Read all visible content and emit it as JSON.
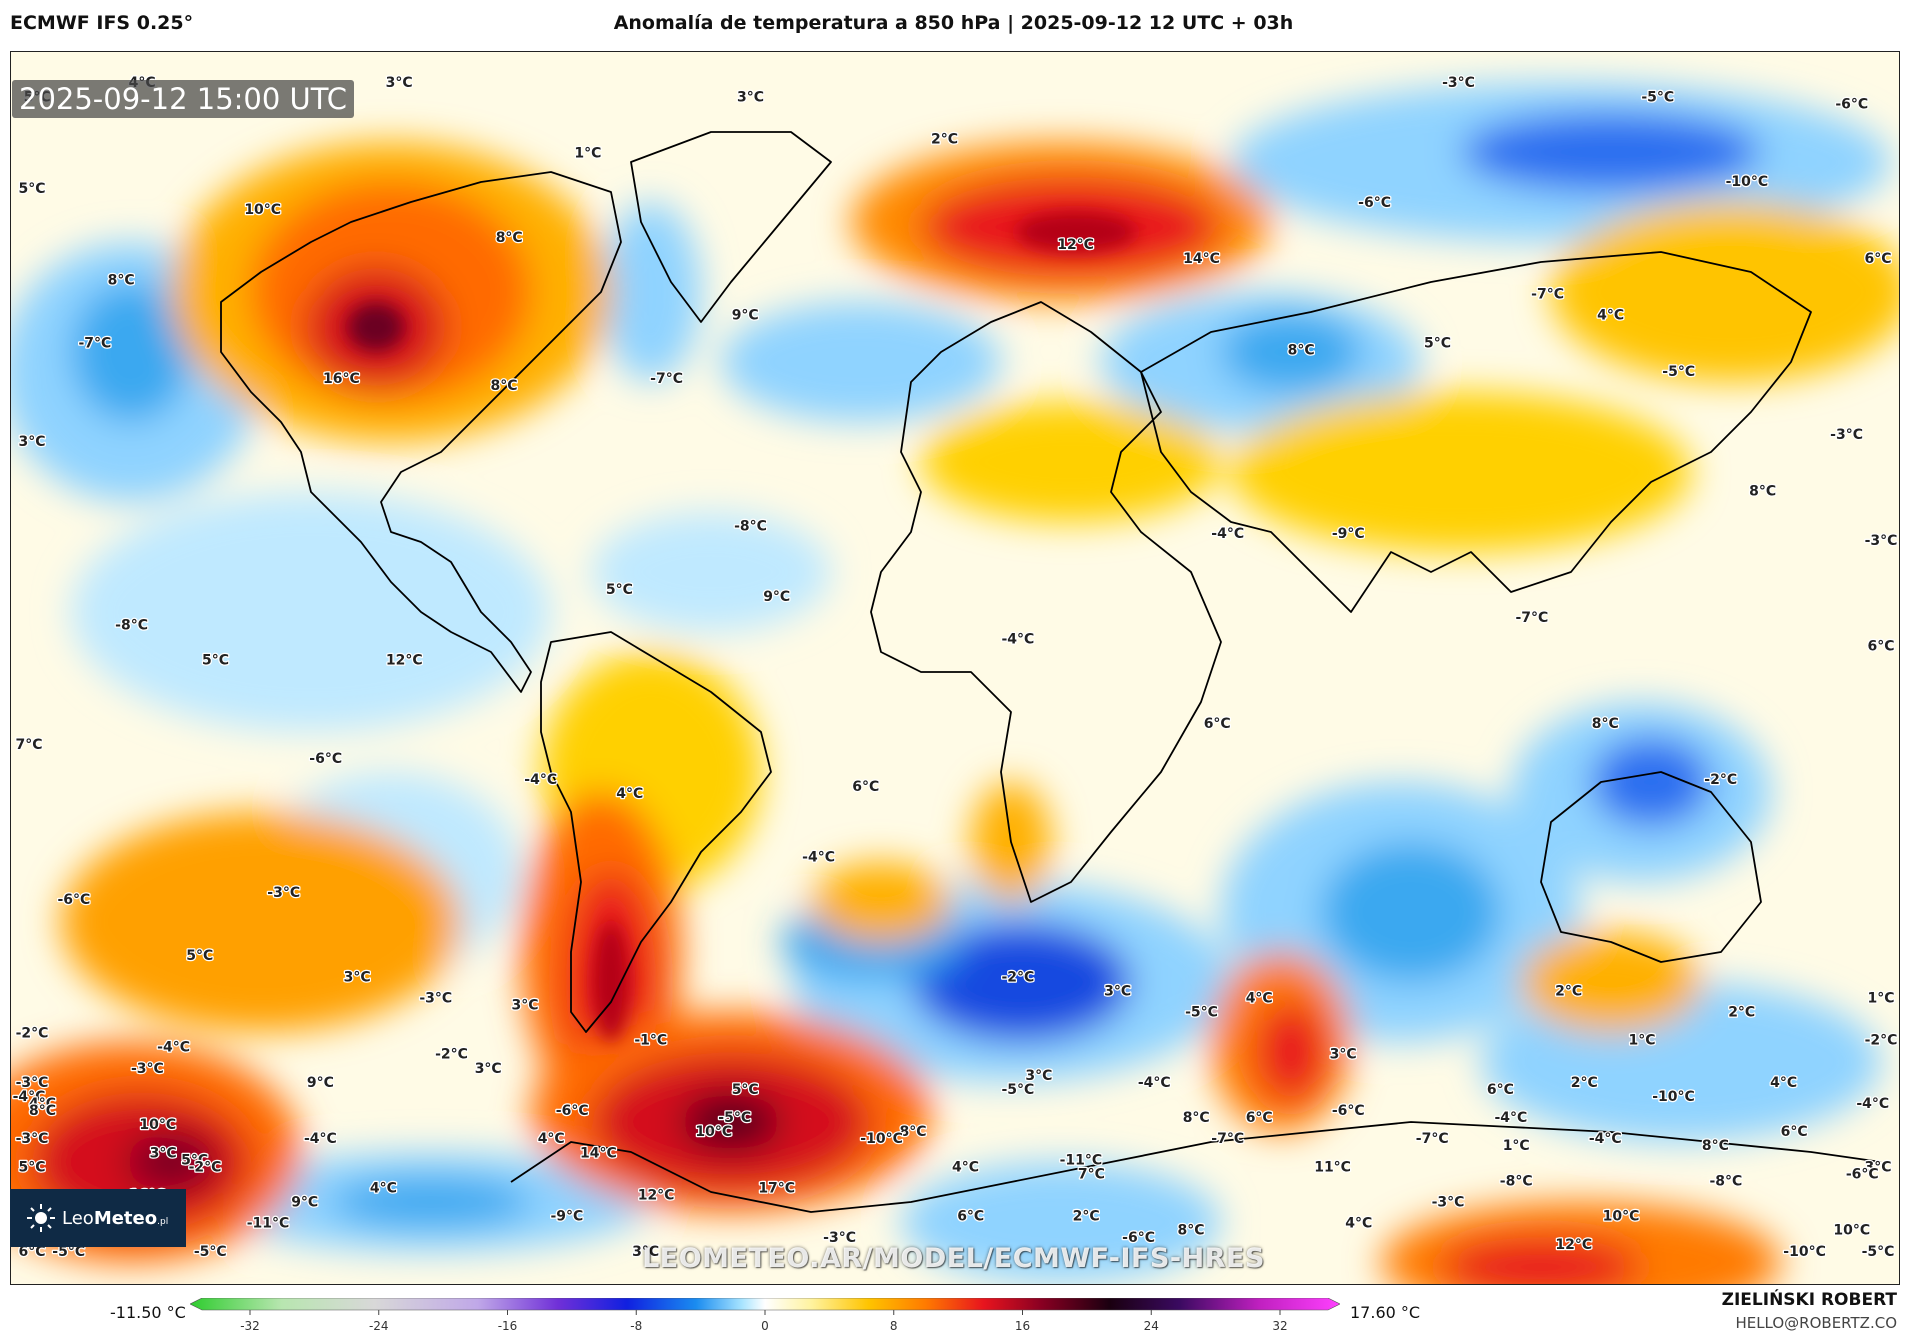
{
  "header": {
    "model": "ECMWF IFS 0.25°",
    "title": "Anomalía de temperatura a 850 hPa | 2025-09-12 12 UTC + 03h"
  },
  "valid_time": "2025-09-12 15:00 UTC",
  "logo": {
    "prefix": "Leo",
    "bold": "Meteo",
    "suffix": ".pl"
  },
  "watermark": "LEOMETEO.AR/MODEL/ECMWF-IFS-HRES",
  "colorbar": {
    "min_value": "-11.50 °C",
    "max_value": "17.60 °C",
    "ticks": [
      "-32",
      "-24",
      "-16",
      "-8",
      "0",
      "8",
      "16",
      "24",
      "32"
    ]
  },
  "credit": {
    "name": "ZIELIŃSKI ROBERT",
    "email": "HELLO@ROBERTZ.CO"
  },
  "colors": {
    "cold_deep": "#0a28d8",
    "cold": "#3aa8f0",
    "cool": "#a8e4ff",
    "neutral": "#ffffff",
    "warm_light": "#fff3a0",
    "warm": "#ffc400",
    "hot": "#ff7a00",
    "very_hot": "#e8141e",
    "extreme": "#8a0022"
  },
  "anomaly_labels": [
    {
      "text": "5°C",
      "lon": -175,
      "lat": 78
    },
    {
      "text": "4°C",
      "lon": -155,
      "lat": 80
    },
    {
      "text": "3°C",
      "lon": -106,
      "lat": 80
    },
    {
      "text": "3°C",
      "lon": -39,
      "lat": 78
    },
    {
      "text": "1°C",
      "lon": -70,
      "lat": 70
    },
    {
      "text": "2°C",
      "lon": -2,
      "lat": 72
    },
    {
      "text": "-3°C",
      "lon": 96,
      "lat": 80
    },
    {
      "text": "-5°C",
      "lon": 134,
      "lat": 78
    },
    {
      "text": "-6°C",
      "lon": 171,
      "lat": 77
    },
    {
      "text": "5°C",
      "lon": -176,
      "lat": 65
    },
    {
      "text": "10°C",
      "lon": -132,
      "lat": 62
    },
    {
      "text": "8°C",
      "lon": -85,
      "lat": 58
    },
    {
      "text": "-10°C",
      "lon": 151,
      "lat": 66
    },
    {
      "text": "-6°C",
      "lon": 80,
      "lat": 63
    },
    {
      "text": "12°C",
      "lon": 23,
      "lat": 57
    },
    {
      "text": "14°C",
      "lon": 47,
      "lat": 55
    },
    {
      "text": "6°C",
      "lon": 176,
      "lat": 55
    },
    {
      "text": "8°C",
      "lon": -159,
      "lat": 52
    },
    {
      "text": "9°C",
      "lon": -40,
      "lat": 47
    },
    {
      "text": "-7°C",
      "lon": 113,
      "lat": 50
    },
    {
      "text": "4°C",
      "lon": 125,
      "lat": 47
    },
    {
      "text": "-7°C",
      "lon": -164,
      "lat": 43
    },
    {
      "text": "16°C",
      "lon": -117,
      "lat": 38
    },
    {
      "text": "8°C",
      "lon": -86,
      "lat": 37
    },
    {
      "text": "-7°C",
      "lon": -55,
      "lat": 38
    },
    {
      "text": "8°C",
      "lon": 66,
      "lat": 42
    },
    {
      "text": "5°C",
      "lon": 92,
      "lat": 43
    },
    {
      "text": "-5°C",
      "lon": 138,
      "lat": 39
    },
    {
      "text": "3°C",
      "lon": -176,
      "lat": 29
    },
    {
      "text": "8°C",
      "lon": 154,
      "lat": 22
    },
    {
      "text": "-3°C",
      "lon": 170,
      "lat": 30
    },
    {
      "text": "-8°C",
      "lon": -39,
      "lat": 17
    },
    {
      "text": "-4°C",
      "lon": 52,
      "lat": 16
    },
    {
      "text": "-9°C",
      "lon": 75,
      "lat": 16
    },
    {
      "text": "-3°C",
      "lon": 179,
      "lat": 15
    },
    {
      "text": "5°C",
      "lon": -64,
      "lat": 8
    },
    {
      "text": "9°C",
      "lon": -34,
      "lat": 7
    },
    {
      "text": "-7°C",
      "lon": 110,
      "lat": 4
    },
    {
      "text": "6°C",
      "lon": 177,
      "lat": 0
    },
    {
      "text": "-8°C",
      "lon": -157,
      "lat": 3
    },
    {
      "text": "5°C",
      "lon": -141,
      "lat": -2
    },
    {
      "text": "12°C",
      "lon": -105,
      "lat": -2
    },
    {
      "text": "-4°C",
      "lon": 12,
      "lat": 1
    },
    {
      "text": "6°C",
      "lon": 50,
      "lat": -11
    },
    {
      "text": "8°C",
      "lon": 124,
      "lat": -11
    },
    {
      "text": "7°C",
      "lon": -178,
      "lat": -14
    },
    {
      "text": "-6°C",
      "lon": -120,
      "lat": -16
    },
    {
      "text": "-4°C",
      "lon": -79,
      "lat": -19
    },
    {
      "text": "4°C",
      "lon": -62,
      "lat": -21
    },
    {
      "text": "6°C",
      "lon": -17,
      "lat": -20
    },
    {
      "text": "-4°C",
      "lon": -26,
      "lat": -30
    },
    {
      "text": "-2°C",
      "lon": 146,
      "lat": -19
    },
    {
      "text": "-6°C",
      "lon": -168,
      "lat": -36
    },
    {
      "text": "-3°C",
      "lon": -128,
      "lat": -35
    },
    {
      "text": "5°C",
      "lon": -144,
      "lat": -44
    },
    {
      "text": "3°C",
      "lon": -114,
      "lat": -47
    },
    {
      "text": "-3°C",
      "lon": -99,
      "lat": -50
    },
    {
      "text": "3°C",
      "lon": -82,
      "lat": -51
    },
    {
      "text": "-2°C",
      "lon": 12,
      "lat": -47
    },
    {
      "text": "3°C",
      "lon": 31,
      "lat": -49
    },
    {
      "text": "-5°C",
      "lon": 47,
      "lat": -52
    },
    {
      "text": "4°C",
      "lon": 58,
      "lat": -50
    },
    {
      "text": "2°C",
      "lon": 117,
      "lat": -49
    },
    {
      "text": "2°C",
      "lon": 150,
      "lat": -52
    },
    {
      "text": "1°C",
      "lon": 179,
      "lat": -50
    },
    {
      "text": "-2°C",
      "lon": -176,
      "lat": -55
    },
    {
      "text": "-1°C",
      "lon": -58,
      "lat": -56
    },
    {
      "text": "1°C",
      "lon": 131,
      "lat": -56
    },
    {
      "text": "-2°C",
      "lon": 178,
      "lat": -56
    },
    {
      "text": "-4°C",
      "lon": -149,
      "lat": -57
    },
    {
      "text": "-2°C",
      "lon": -96,
      "lat": -58
    },
    {
      "text": "3°C",
      "lon": 74,
      "lat": -58
    },
    {
      "text": "-3°C",
      "lon": -154,
      "lat": -60
    },
    {
      "text": "3°C",
      "lon": -89,
      "lat": -60
    },
    {
      "text": "3°C",
      "lon": 16,
      "lat": -61
    },
    {
      "text": "-3°C",
      "lon": -176,
      "lat": -62
    },
    {
      "text": "9°C",
      "lon": -121,
      "lat": -62
    },
    {
      "text": "-4°C",
      "lon": 38,
      "lat": -62
    },
    {
      "text": "2°C",
      "lon": 120,
      "lat": -62
    },
    {
      "text": "4°C",
      "lon": 158,
      "lat": -62
    },
    {
      "text": "5°C",
      "lon": -40,
      "lat": -63
    },
    {
      "text": "-5°C",
      "lon": 12,
      "lat": -63
    },
    {
      "text": "6°C",
      "lon": 104,
      "lat": -63
    },
    {
      "text": "-4°C",
      "lon": -177,
      "lat": -64
    },
    {
      "text": "-10°C",
      "lon": 137,
      "lat": -64
    },
    {
      "text": "-4°C",
      "lon": 175,
      "lat": -65
    },
    {
      "text": "4°C",
      "lon": -174,
      "lat": -65
    },
    {
      "text": "8°C",
      "lon": -174,
      "lat": -66
    },
    {
      "text": "-6°C",
      "lon": -73,
      "lat": -66
    },
    {
      "text": "-5°C",
      "lon": -42,
      "lat": -67
    },
    {
      "text": "8°C",
      "lon": 46,
      "lat": -67
    },
    {
      "text": "6°C",
      "lon": 58,
      "lat": -67
    },
    {
      "text": "-6°C",
      "lon": 75,
      "lat": -66
    },
    {
      "text": "-4°C",
      "lon": 106,
      "lat": -67
    },
    {
      "text": "10°C",
      "lon": -152,
      "lat": -68
    },
    {
      "text": "10°C",
      "lon": -46,
      "lat": -69
    },
    {
      "text": "8°C",
      "lon": -8,
      "lat": -69
    },
    {
      "text": "6°C",
      "lon": 160,
      "lat": -69
    },
    {
      "text": "-10°C",
      "lon": -14,
      "lat": -70
    },
    {
      "text": "4°C",
      "lon": -77,
      "lat": -70
    },
    {
      "text": "-7°C",
      "lon": 52,
      "lat": -70
    },
    {
      "text": "-7°C",
      "lon": 91,
      "lat": -70
    },
    {
      "text": "-4°C",
      "lon": 124,
      "lat": -70
    },
    {
      "text": "-3°C",
      "lon": -176,
      "lat": -70
    },
    {
      "text": "-4°C",
      "lon": -121,
      "lat": -70
    },
    {
      "text": "1°C",
      "lon": 107,
      "lat": -71
    },
    {
      "text": "8°C",
      "lon": 145,
      "lat": -71
    },
    {
      "text": "14°C",
      "lon": -68,
      "lat": -72
    },
    {
      "text": "3°C",
      "lon": -151,
      "lat": -72
    },
    {
      "text": "5°C",
      "lon": -145,
      "lat": -73
    },
    {
      "text": "-11°C",
      "lon": 24,
      "lat": -73
    },
    {
      "text": "11°C",
      "lon": 72,
      "lat": -74
    },
    {
      "text": "-2°C",
      "lon": -143,
      "lat": -74
    },
    {
      "text": "4°C",
      "lon": 2,
      "lat": -74
    },
    {
      "text": "5°C",
      "lon": -176,
      "lat": -74
    },
    {
      "text": "3°C",
      "lon": 176,
      "lat": -74
    },
    {
      "text": "-6°C",
      "lon": 173,
      "lat": -75
    },
    {
      "text": "7°C",
      "lon": 26,
      "lat": -75
    },
    {
      "text": "-8°C",
      "lon": 107,
      "lat": -76
    },
    {
      "text": "-8°C",
      "lon": 147,
      "lat": -76
    },
    {
      "text": "17°C",
      "lon": -34,
      "lat": -77
    },
    {
      "text": "4°C",
      "lon": -109,
      "lat": -77
    },
    {
      "text": "12°C",
      "lon": -57,
      "lat": -78
    },
    {
      "text": "16°C",
      "lon": -154,
      "lat": -78
    },
    {
      "text": "9°C",
      "lon": -124,
      "lat": -79
    },
    {
      "text": "-3°C",
      "lon": 94,
      "lat": -79
    },
    {
      "text": "-9°C",
      "lon": -74,
      "lat": -81
    },
    {
      "text": "-11°C",
      "lon": -131,
      "lat": -82
    },
    {
      "text": "6°C",
      "lon": 3,
      "lat": -81
    },
    {
      "text": "2°C",
      "lon": 25,
      "lat": -81
    },
    {
      "text": "4°C",
      "lon": 77,
      "lat": -82
    },
    {
      "text": "10°C",
      "lon": 127,
      "lat": -81
    },
    {
      "text": "8°C",
      "lon": 45,
      "lat": -83
    },
    {
      "text": "10°C",
      "lon": 171,
      "lat": -83
    },
    {
      "text": "-3°C",
      "lon": -22,
      "lat": -84
    },
    {
      "text": "-6°C",
      "lon": 35,
      "lat": -84
    },
    {
      "text": "12°C",
      "lon": 118,
      "lat": -85
    },
    {
      "text": "-10°C",
      "lon": 162,
      "lat": -86
    },
    {
      "text": "-5°C",
      "lon": 176,
      "lat": -86
    },
    {
      "text": "6°C",
      "lon": -176,
      "lat": -86
    },
    {
      "text": "-5°C",
      "lon": -169,
      "lat": -86
    },
    {
      "text": "-5°C",
      "lon": -142,
      "lat": -86
    },
    {
      "text": "3°C",
      "lon": -59,
      "lat": -86
    }
  ]
}
